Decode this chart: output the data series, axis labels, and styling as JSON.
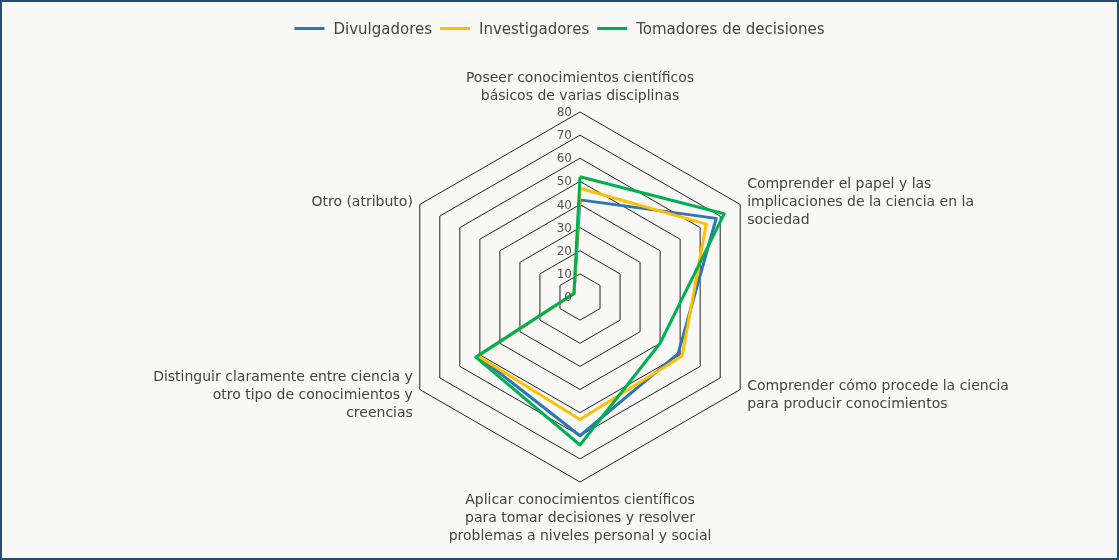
{
  "chart_data": {
    "type": "radar",
    "categories": [
      "Poseer conocimientos científicos básicos de varias disciplinas",
      "Comprender el papel y las implicaciones de la ciencia en la sociedad",
      "Comprender cómo procede la ciencia para producir conocimientos",
      "Aplicar conocimientos científicos para tomar decisiones y resolver problemas a niveles personal y social",
      "Distinguir claramente entre ciencia y otro tipo de conocimientos y creencias",
      "Otro (atributo)"
    ],
    "series": [
      {
        "name": "Divulgadores",
        "color": "#2e75b6",
        "values": [
          42,
          68,
          49,
          60,
          51,
          3
        ]
      },
      {
        "name": "Investigadores",
        "color": "#ffc000",
        "values": [
          47,
          63,
          51,
          53,
          51,
          3
        ]
      },
      {
        "name": "Tomadores de decisiones",
        "color": "#00b050",
        "values": [
          52,
          72,
          40,
          64,
          52,
          3
        ]
      }
    ],
    "ylim": [
      0,
      80
    ],
    "yticks": [
      0,
      10,
      20,
      30,
      40,
      50,
      60,
      70,
      80
    ],
    "grid": true,
    "legend": "top",
    "marker": "none",
    "line_style": "solid"
  }
}
